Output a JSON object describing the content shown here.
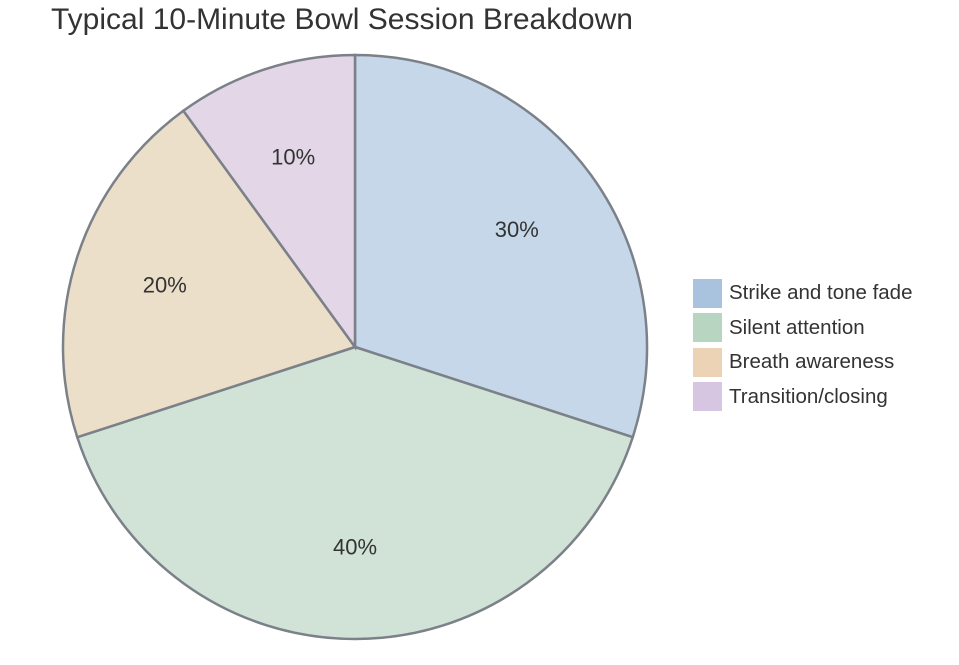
{
  "title": "Typical 10-Minute Bowl Session Breakdown",
  "chart_data": {
    "type": "pie",
    "title": "Typical 10-Minute Bowl Session Breakdown",
    "labels": [
      "Strike and tone fade",
      "Silent attention",
      "Breath awareness",
      "Transition/closing"
    ],
    "values": [
      30,
      40,
      20,
      10
    ],
    "value_labels": [
      "30%",
      "40%",
      "20%",
      "10%"
    ],
    "colors": [
      "#c5d7e8",
      "#d0e3d6",
      "#ecdfca",
      "#e2d6e7"
    ],
    "legend_colors": [
      "#a9c3de",
      "#b7d5c0",
      "#ecd3b5",
      "#d6c6e2"
    ],
    "start_angle": "12 o'clock",
    "direction": "clockwise",
    "legend_position": "right"
  }
}
